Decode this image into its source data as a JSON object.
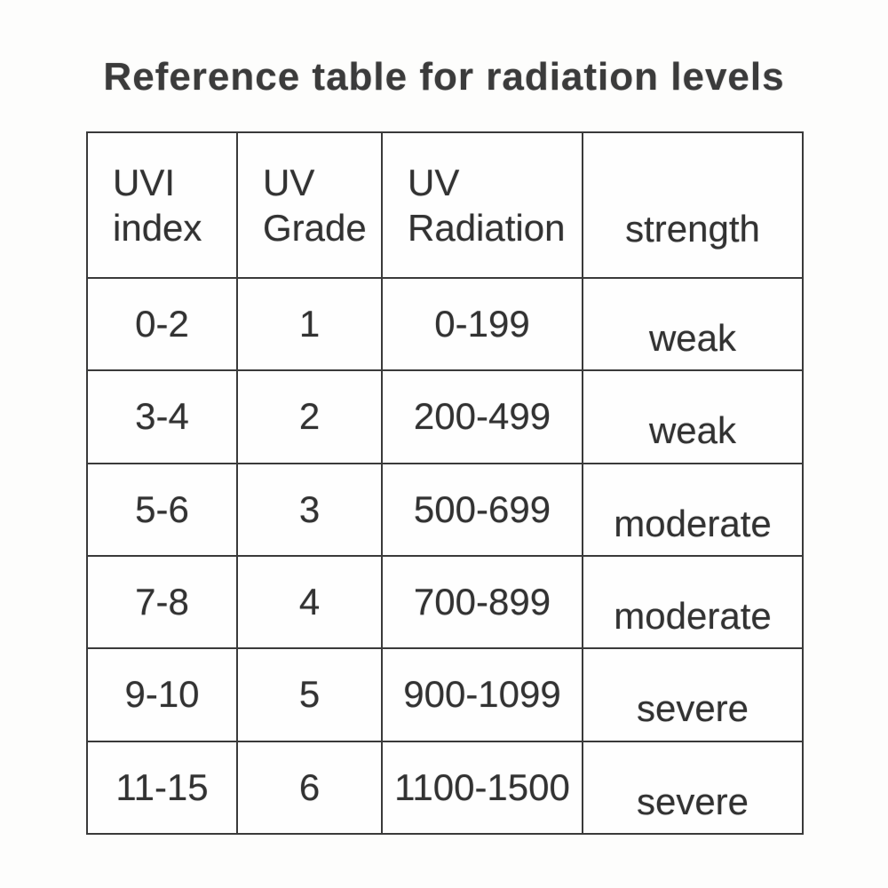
{
  "title": "Reference table for radiation levels",
  "colors": {
    "text": "#323232",
    "border": "#3a3a3a",
    "background": "#fdfdfc"
  },
  "table": {
    "headers": [
      {
        "line1": "UVI",
        "line2": "index"
      },
      {
        "line1": "UV",
        "line2": "Grade"
      },
      {
        "line1": "UV",
        "line2": "Radiation"
      },
      {
        "line1": "strength",
        "line2": ""
      }
    ],
    "rows": [
      {
        "uvi_index": "0-2",
        "uv_grade": "1",
        "uv_radiation": "0-199",
        "strength": "weak"
      },
      {
        "uvi_index": "3-4",
        "uv_grade": "2",
        "uv_radiation": "200-499",
        "strength": "weak"
      },
      {
        "uvi_index": "5-6",
        "uv_grade": "3",
        "uv_radiation": "500-699",
        "strength": "moderate"
      },
      {
        "uvi_index": "7-8",
        "uv_grade": "4",
        "uv_radiation": "700-899",
        "strength": "moderate"
      },
      {
        "uvi_index": "9-10",
        "uv_grade": "5",
        "uv_radiation": "900-1099",
        "strength": "severe"
      },
      {
        "uvi_index": "11-15",
        "uv_grade": "6",
        "uv_radiation": "1100-1500",
        "strength": "severe"
      }
    ]
  },
  "chart_data": {
    "type": "table",
    "title": "Reference table for radiation levels",
    "columns": [
      "UVI index",
      "UV Grade",
      "UV Radiation",
      "strength"
    ],
    "rows": [
      [
        "0-2",
        "1",
        "0-199",
        "weak"
      ],
      [
        "3-4",
        "2",
        "200-499",
        "weak"
      ],
      [
        "5-6",
        "3",
        "500-699",
        "moderate"
      ],
      [
        "7-8",
        "4",
        "700-899",
        "moderate"
      ],
      [
        "9-10",
        "5",
        "900-1099",
        "severe"
      ],
      [
        "11-15",
        "6",
        "1100-1500",
        "severe"
      ]
    ]
  }
}
